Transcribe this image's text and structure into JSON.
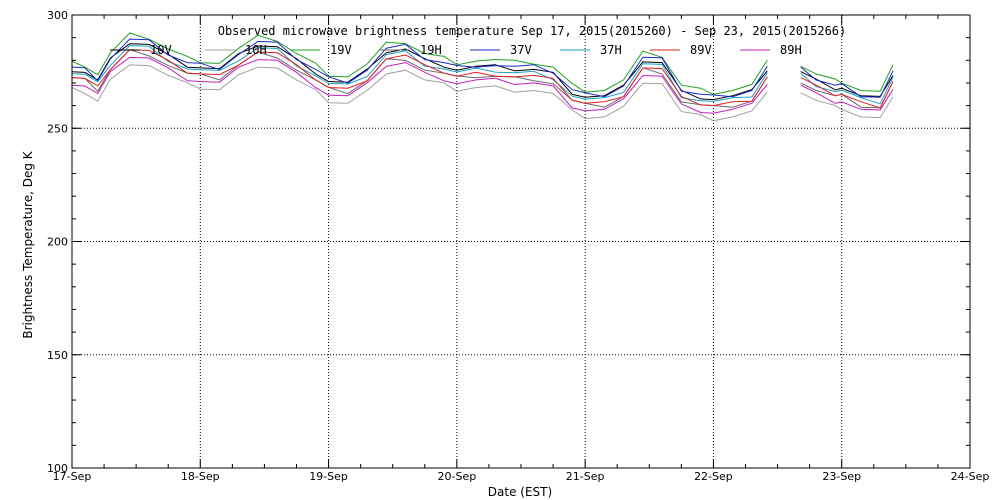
{
  "chart_data": {
    "type": "line",
    "title": "Observed microwave brightness temperature Sep 17, 2015(2015260) - Sep 23, 2015(2015266)",
    "xlabel": "Date (EST)",
    "ylabel": "Brightness Temperature, Deg K",
    "xlim": [
      0,
      7
    ],
    "ylim": [
      100,
      300
    ],
    "x_tick_labels": [
      "17-Sep",
      "18-Sep",
      "19-Sep",
      "20-Sep",
      "21-Sep",
      "22-Sep",
      "23-Sep",
      "24-Sep"
    ],
    "y_ticks": [
      100,
      150,
      200,
      250,
      300
    ],
    "grid": true,
    "legend_placement": "top",
    "series": [
      {
        "name": "10V",
        "color": "#000000",
        "offset": 0
      },
      {
        "name": "10H",
        "color": "#a0a0a0",
        "offset": -9
      },
      {
        "name": "19V",
        "color": "#22a022",
        "offset": 3
      },
      {
        "name": "19H",
        "color": "#6a6a6a",
        "offset": -4
      },
      {
        "name": "37V",
        "color": "#1a2ad0",
        "offset": 1
      },
      {
        "name": "37H",
        "color": "#1aa0c0",
        "offset": -1.5
      },
      {
        "name": "89V",
        "color": "#e02020",
        "offset": -3
      },
      {
        "name": "89H",
        "color": "#c020c0",
        "offset": -6
      }
    ],
    "x": [
      0,
      0.1,
      0.2,
      0.3,
      0.45,
      0.6,
      0.75,
      0.9,
      1.0,
      1.15,
      1.3,
      1.45,
      1.6,
      1.75,
      1.9,
      2.0,
      2.15,
      2.3,
      2.45,
      2.6,
      2.75,
      2.9,
      3.0,
      3.15,
      3.3,
      3.45,
      3.6,
      3.75,
      3.9,
      4.0,
      4.15,
      4.3,
      4.45,
      4.6,
      4.75,
      4.9,
      5.0,
      5.15,
      5.3,
      5.42,
      5.68,
      5.8,
      5.95,
      6.0,
      6.15,
      6.3,
      6.4
    ],
    "base": [
      276,
      275,
      271,
      280,
      288,
      287,
      282,
      278,
      277,
      276,
      282,
      287,
      286,
      280,
      275,
      271,
      270,
      275,
      284,
      285,
      280,
      278,
      276,
      277,
      277,
      276,
      276,
      274,
      266,
      264,
      264,
      268,
      280,
      279,
      266,
      264,
      263,
      264,
      266,
      276,
      275,
      271,
      268,
      268,
      264,
      263,
      274
    ]
  }
}
